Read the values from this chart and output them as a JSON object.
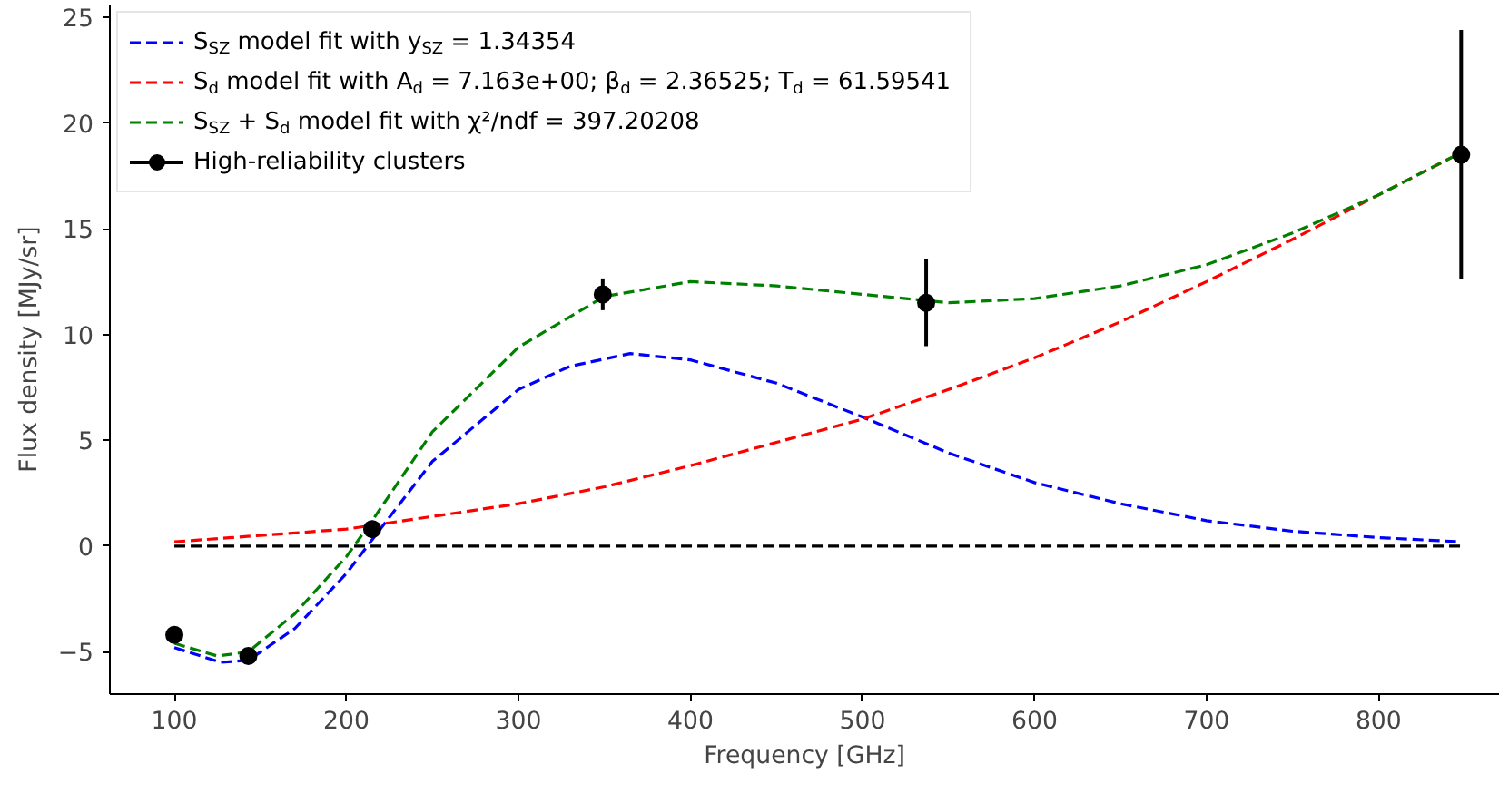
{
  "chart_data": {
    "type": "line",
    "xlabel": "Frequency [GHz]",
    "ylabel": "Flux density [MJy/sr]",
    "xlim": [
      62.5,
      870
    ],
    "ylim": [
      -7,
      25.6
    ],
    "xticks": [
      100,
      200,
      300,
      400,
      500,
      600,
      700,
      800
    ],
    "yticks": [
      -5,
      0,
      5,
      10,
      15,
      20,
      25
    ],
    "grid": false,
    "legend": "top left",
    "line_style": "dashed",
    "series": [
      {
        "name": "S$_{SZ}$ model fit with y$_{SZ}$ = 1.34354",
        "color": "#0000ff",
        "x": [
          100,
          127,
          143,
          170,
          200,
          215,
          250,
          300,
          330,
          365,
          400,
          450,
          500,
          550,
          600,
          650,
          700,
          750,
          800,
          848
        ],
        "values": [
          -4.8,
          -5.5,
          -5.4,
          -3.9,
          -1.3,
          0.3,
          4.0,
          7.4,
          8.5,
          9.1,
          8.8,
          7.7,
          6.1,
          4.4,
          3.0,
          2.0,
          1.2,
          0.7,
          0.4,
          0.2
        ]
      },
      {
        "name": "S$_{d}$ model fit with A$_{d}$ = 7.163e+00; β$_{d}$ = 2.36525; T$_{d}$ = 61.59541",
        "color": "#ff0000",
        "x": [
          100,
          150,
          200,
          250,
          300,
          350,
          400,
          450,
          500,
          550,
          600,
          650,
          700,
          750,
          800,
          848
        ],
        "values": [
          0.2,
          0.5,
          0.8,
          1.4,
          2.0,
          2.8,
          3.8,
          4.9,
          6.0,
          7.4,
          8.9,
          10.6,
          12.5,
          14.5,
          16.6,
          18.6
        ]
      },
      {
        "name": "S$_{SZ}$ + S$_{d}$ model fit with χ²/ndf = 397.20208",
        "color": "#008000",
        "x": [
          100,
          125,
          143,
          170,
          200,
          215,
          250,
          300,
          350,
          400,
          450,
          500,
          550,
          600,
          650,
          700,
          750,
          800,
          848
        ],
        "values": [
          -4.6,
          -5.2,
          -5.0,
          -3.2,
          -0.5,
          1.2,
          5.4,
          9.4,
          11.8,
          12.5,
          12.3,
          11.9,
          11.5,
          11.7,
          12.3,
          13.3,
          14.8,
          16.6,
          18.6
        ]
      },
      {
        "color": "#000000",
        "x": [
          100,
          848
        ],
        "values": [
          0,
          0
        ]
      },
      {
        "name": "High-reliability clusters",
        "type": "scatter",
        "marker": "circle",
        "line_style": "none",
        "color": "#000000",
        "x": [
          100,
          143,
          215,
          349,
          537,
          848
        ],
        "values": [
          -4.2,
          -5.2,
          0.8,
          11.9,
          11.5,
          18.5
        ],
        "errors": [
          null,
          null,
          0.4,
          0.75,
          2.05,
          5.9
        ]
      }
    ]
  }
}
